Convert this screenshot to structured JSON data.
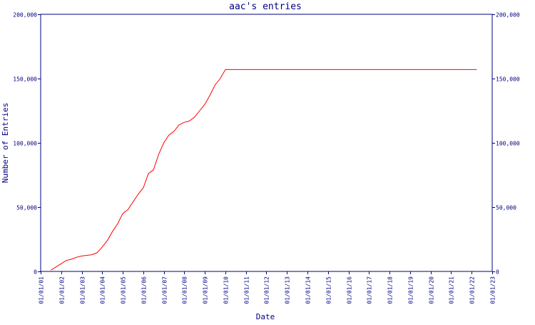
{
  "chart_data": {
    "type": "line",
    "title": "aac's entries",
    "xlabel": "Date",
    "ylabel": "Number of Entries",
    "x_tick_labels": [
      "01/01/01",
      "01/01/02",
      "01/01/03",
      "01/01/04",
      "01/01/05",
      "01/01/06",
      "01/01/07",
      "01/01/08",
      "01/01/09",
      "01/01/10",
      "01/01/11",
      "01/01/12",
      "01/01/13",
      "01/01/14",
      "01/01/15",
      "01/01/16",
      "01/01/17",
      "01/01/18",
      "01/01/19",
      "01/01/20",
      "01/01/21",
      "01/01/22",
      "01/01/23"
    ],
    "y_tick_labels": [
      "0",
      "50,000",
      "100,000",
      "150,000",
      "200,000"
    ],
    "y_ticks": [
      0,
      50000,
      100000,
      150000,
      200000
    ],
    "xlim": [
      "2001-01-01",
      "2023-01-01"
    ],
    "ylim": [
      0,
      200000
    ],
    "grid": false,
    "right_axis_mirrored": true,
    "colors": {
      "axis": "#000080",
      "line": "#ff0000",
      "background": "#ffffff"
    },
    "series": [
      {
        "x": [
          "2001-07-01",
          "2001-10-01",
          "2002-01-01",
          "2002-04-01",
          "2002-07-01",
          "2002-10-01",
          "2003-01-01",
          "2003-04-01",
          "2003-07-01",
          "2003-10-01",
          "2004-01-01",
          "2004-04-01",
          "2004-07-01",
          "2004-10-01",
          "2005-01-01",
          "2005-04-01",
          "2005-07-01",
          "2005-10-01",
          "2006-01-01",
          "2006-04-01",
          "2006-07-01",
          "2006-10-01",
          "2007-01-01",
          "2007-04-01",
          "2007-07-01",
          "2007-10-01",
          "2008-01-01",
          "2008-04-01",
          "2008-07-01",
          "2008-10-01",
          "2009-01-01",
          "2009-04-01",
          "2009-07-01",
          "2009-10-01",
          "2010-01-01",
          "2010-04-01",
          "2010-07-01",
          "2010-10-01",
          "2011-01-01",
          "2015-01-01",
          "2020-01-01",
          "2022-04-01"
        ],
        "values": [
          1000,
          3500,
          6000,
          8500,
          9500,
          11000,
          12000,
          12500,
          13000,
          14500,
          19000,
          24000,
          31000,
          37000,
          45000,
          48000,
          54000,
          60000,
          65000,
          76000,
          79000,
          91000,
          100000,
          106000,
          109000,
          114000,
          116000,
          117000,
          120000,
          125000,
          130000,
          137000,
          145000,
          150000,
          157000,
          157000,
          157000,
          157000,
          157000,
          157000,
          157000,
          157000
        ]
      }
    ]
  }
}
